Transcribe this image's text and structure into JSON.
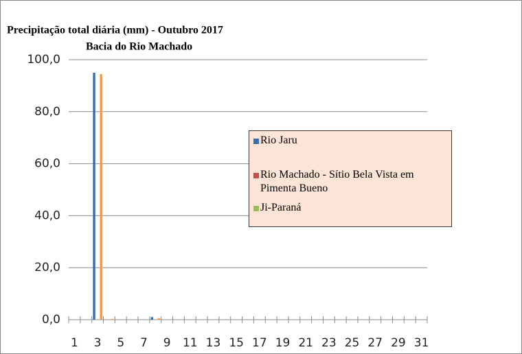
{
  "chart_data": {
    "type": "bar",
    "title": "Precipitação total diária (mm) - Outubro 2017",
    "subtitle": "Bacia do Rio Machado",
    "categories": [
      "1",
      null,
      "3",
      null,
      "5",
      null,
      "7",
      null,
      "9",
      null,
      "11",
      null,
      "13",
      null,
      "15",
      null,
      "17",
      null,
      "19",
      null,
      "21",
      null,
      "23",
      null,
      "25",
      null,
      "27",
      null,
      "29",
      null,
      "31"
    ],
    "series": [
      {
        "name": "Rio Jaru",
        "color": "#3a6ab0",
        "values": [
          0,
          0,
          95.0,
          0,
          0,
          0,
          0,
          1.0,
          0,
          0,
          0,
          0,
          0,
          0,
          0,
          0,
          0,
          0,
          0,
          0,
          0,
          0,
          0,
          0,
          0,
          0,
          0,
          0,
          0,
          0,
          0
        ]
      },
      {
        "name": "Rio Machado - Sítio Bela Vista em Pimenta Bueno",
        "color": "#c0504d",
        "values": [
          0,
          0,
          0,
          0,
          0,
          0,
          0,
          0,
          0,
          0,
          0,
          0,
          0,
          0,
          0,
          0,
          0,
          0,
          0,
          0,
          0,
          0,
          0,
          0,
          0,
          0,
          0,
          0,
          0,
          0,
          0
        ]
      },
      {
        "name": "Ji-Paraná",
        "color": "#9bbb59",
        "values": [
          0,
          0,
          0,
          0,
          0,
          0,
          0,
          0,
          0,
          0,
          0,
          0,
          0,
          0,
          0,
          0,
          0,
          0,
          0,
          0,
          0,
          0,
          0,
          0,
          0,
          0,
          0,
          0,
          0,
          0,
          0
        ]
      },
      {
        "color": "#f79646",
        "values": [
          0,
          0,
          94.5,
          0.3,
          0,
          0,
          0,
          0.6,
          0,
          0,
          0,
          0,
          0,
          0,
          0,
          0,
          0,
          0,
          0,
          0,
          0,
          0,
          0,
          0,
          0,
          0,
          0,
          0,
          0,
          0,
          0
        ]
      }
    ],
    "ylim": [
      0,
      100
    ],
    "yticks": [
      {
        "value": 0,
        "label": "0,0"
      },
      {
        "value": 20,
        "label": "20,0"
      },
      {
        "value": 40,
        "label": "40,0"
      },
      {
        "value": 60,
        "label": "60,0"
      },
      {
        "value": 80,
        "label": "80,0"
      },
      {
        "value": 100,
        "label": "100,0"
      }
    ],
    "grid": true
  }
}
